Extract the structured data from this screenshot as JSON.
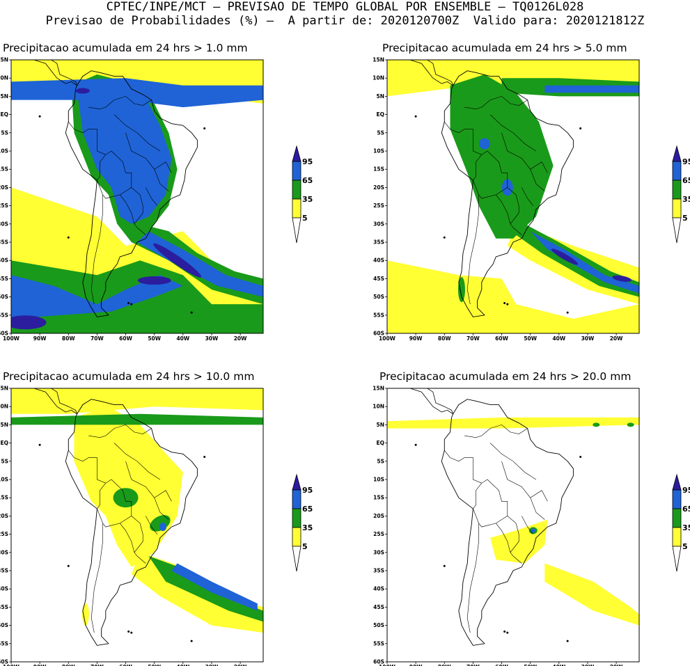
{
  "header": {
    "line1": "CPTEC/INPE/MCT – PREVISAO DE TEMPO GLOBAL POR ENSEMBLE – TQ0126L028",
    "line2": "Previsao de Probabilidades (%) –  A partir de: 2020120700Z  Valido para: 2020121812Z"
  },
  "axes": {
    "y_ticks": [
      "15N",
      "10N",
      "5N",
      "EQ",
      "5S",
      "10S",
      "15S",
      "20S",
      "25S",
      "30S",
      "35S",
      "40S",
      "45S",
      "50S",
      "55S",
      "60S"
    ],
    "x_ticks": [
      "100W",
      "90W",
      "80W",
      "70W",
      "60W",
      "50W",
      "40W",
      "30W",
      "20W"
    ],
    "lon_range": [
      -100,
      -12
    ],
    "lat_range": [
      -60,
      15
    ]
  },
  "colorbar": {
    "labels": [
      "95",
      "65",
      "35",
      "5"
    ],
    "colors": {
      "c95": "#2b1d9e",
      "c65": "#1f63d6",
      "c35": "#1a9a1a",
      "c5": "#ffff33",
      "below": "#ffffff"
    }
  },
  "panels": [
    {
      "title": "Precipitacao acumulada em 24 hrs > 1.0 mm",
      "threshold": "1.0"
    },
    {
      "title": "Precipitacao acumulada em 24 hrs > 5.0 mm",
      "threshold": "5.0"
    },
    {
      "title": "Precipitacao acumulada em 24 hrs > 10.0 mm",
      "threshold": "10.0"
    },
    {
      "title": "Precipitacao acumulada em 24 hrs > 20.0 mm",
      "threshold": "20.0"
    }
  ]
}
